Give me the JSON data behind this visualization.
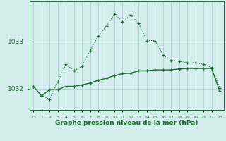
{
  "xlabel": "Graphe pression niveau de la mer (hPa)",
  "bg_color": "#d4eeee",
  "grid_color": "#aacccc",
  "line_color": "#1a6b2a",
  "tick_color": "#1a6b2a",
  "spine_color": "#1a6b2a",
  "x_values": [
    0,
    1,
    2,
    3,
    4,
    5,
    6,
    7,
    8,
    9,
    10,
    11,
    12,
    13,
    14,
    15,
    16,
    17,
    18,
    19,
    20,
    21,
    22,
    23
  ],
  "series1": [
    1032.05,
    1031.85,
    1031.78,
    1032.15,
    1032.52,
    1032.38,
    1032.48,
    1032.8,
    1033.12,
    1033.32,
    1033.58,
    1033.42,
    1033.56,
    1033.38,
    1033.02,
    1033.02,
    1032.72,
    1032.6,
    1032.58,
    1032.55,
    1032.55,
    1032.52,
    1032.45,
    1032.02
  ],
  "series2": [
    1032.05,
    1031.85,
    1031.98,
    1031.98,
    1032.05,
    1032.05,
    1032.08,
    1032.12,
    1032.18,
    1032.22,
    1032.28,
    1032.32,
    1032.33,
    1032.38,
    1032.38,
    1032.4,
    1032.4,
    1032.4,
    1032.42,
    1032.43,
    1032.43,
    1032.43,
    1032.43,
    1031.95
  ],
  "yticks": [
    1032,
    1033
  ],
  "ylim": [
    1031.55,
    1033.85
  ],
  "xlim": [
    -0.5,
    23.5
  ]
}
